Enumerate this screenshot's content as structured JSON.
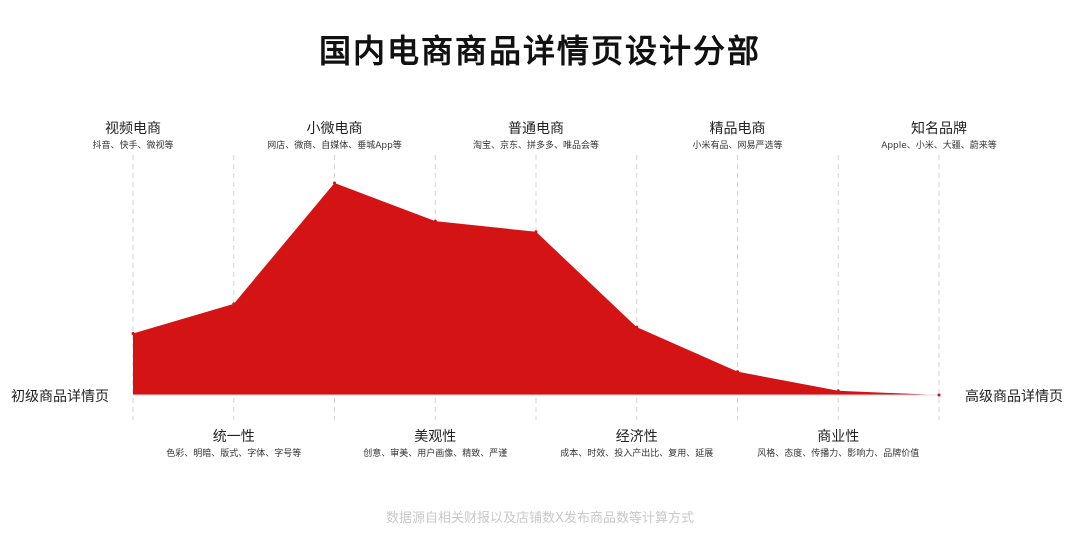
{
  "chart_data": {
    "type": "area",
    "title": "国内电商商品详情页设计分部",
    "x_start_label": "初级商品详情页",
    "x_end_label": "高级商品详情页",
    "top_categories": [
      {
        "name": "视频电商",
        "desc": "抖音、快手、微视等"
      },
      {
        "name": "小微电商",
        "desc": "网店、微商、自媒体、垂城App等"
      },
      {
        "name": "普通电商",
        "desc": "淘宝、京东、拼多多、唯品会等"
      },
      {
        "name": "精品电商",
        "desc": "小米有品、网易严选等"
      },
      {
        "name": "知名品牌",
        "desc": "Apple、小米、大疆、蔚来等"
      }
    ],
    "bottom_categories": [
      {
        "name": "统一性",
        "desc": "色彩、明暗、版式、字体、字号等"
      },
      {
        "name": "美观性",
        "desc": "创意、审美、用户画像、精致、严谨"
      },
      {
        "name": "经济性",
        "desc": "成本、时效、投入产出比、复用、延展"
      },
      {
        "name": "商业性",
        "desc": "风格、态度、传播力、影响力、品牌价值"
      }
    ],
    "x": [
      0,
      1,
      2,
      3,
      4,
      5,
      6,
      7,
      8
    ],
    "values": [
      29,
      43,
      100,
      82,
      77,
      32,
      11,
      2,
      0
    ],
    "ylim": [
      0,
      100
    ],
    "color": "#d41414",
    "source": "数据源自相关财报以及店铺数X发布商品数等计算方式"
  }
}
